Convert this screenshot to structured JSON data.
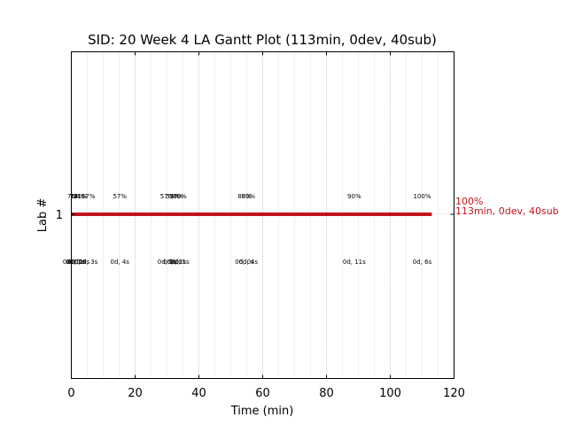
{
  "chart_data": {
    "type": "gantt",
    "title": "SID: 20 Week 4 LA Gantt Plot (113min, 0dev, 40sub)",
    "xlabel": "Time (min)",
    "ylabel": "Lab #",
    "xlim": [
      0,
      120
    ],
    "x_ticks": [
      "0",
      "20",
      "40",
      "60",
      "80",
      "100",
      "120"
    ],
    "y_ticks": [
      "1"
    ],
    "grid": "vertical dotted",
    "bar_color": "#c0151b",
    "bar": {
      "lab": "1",
      "start": 0,
      "end": 113
    },
    "end_label": {
      "line1": "100%",
      "line2": "113min, 0dev, 40sub"
    },
    "milestones": [
      {
        "x": 0.3,
        "pct": "7%",
        "dur": "0d, 0s"
      },
      {
        "x": 1.2,
        "pct": "7%",
        "dur": "0d, 1s"
      },
      {
        "x": 1.8,
        "pct": "14%",
        "dur": "0d, 1s"
      },
      {
        "x": 2.8,
        "pct": "21%",
        "dur": "0d, 2s"
      },
      {
        "x": 5.3,
        "pct": "57%",
        "dur": "0d, 3s"
      },
      {
        "x": 15.2,
        "pct": "57%",
        "dur": "0d, 4s"
      },
      {
        "x": 30.0,
        "pct": "57%",
        "dur": "0d, 0s"
      },
      {
        "x": 31.8,
        "pct": "57%",
        "dur": "0d, 0s"
      },
      {
        "x": 33.0,
        "pct": "57%",
        "dur": "0d, 2s"
      },
      {
        "x": 34.0,
        "pct": "60%",
        "dur": "0d, 1s"
      },
      {
        "x": 54.3,
        "pct": "88%",
        "dur": "0d, 0s"
      },
      {
        "x": 55.5,
        "pct": "80%",
        "dur": "0d, 4s"
      },
      {
        "x": 88.7,
        "pct": "90%",
        "dur": "0d, 11s"
      },
      {
        "x": 110.0,
        "pct": "100%",
        "dur": "0d, 6s"
      }
    ]
  }
}
